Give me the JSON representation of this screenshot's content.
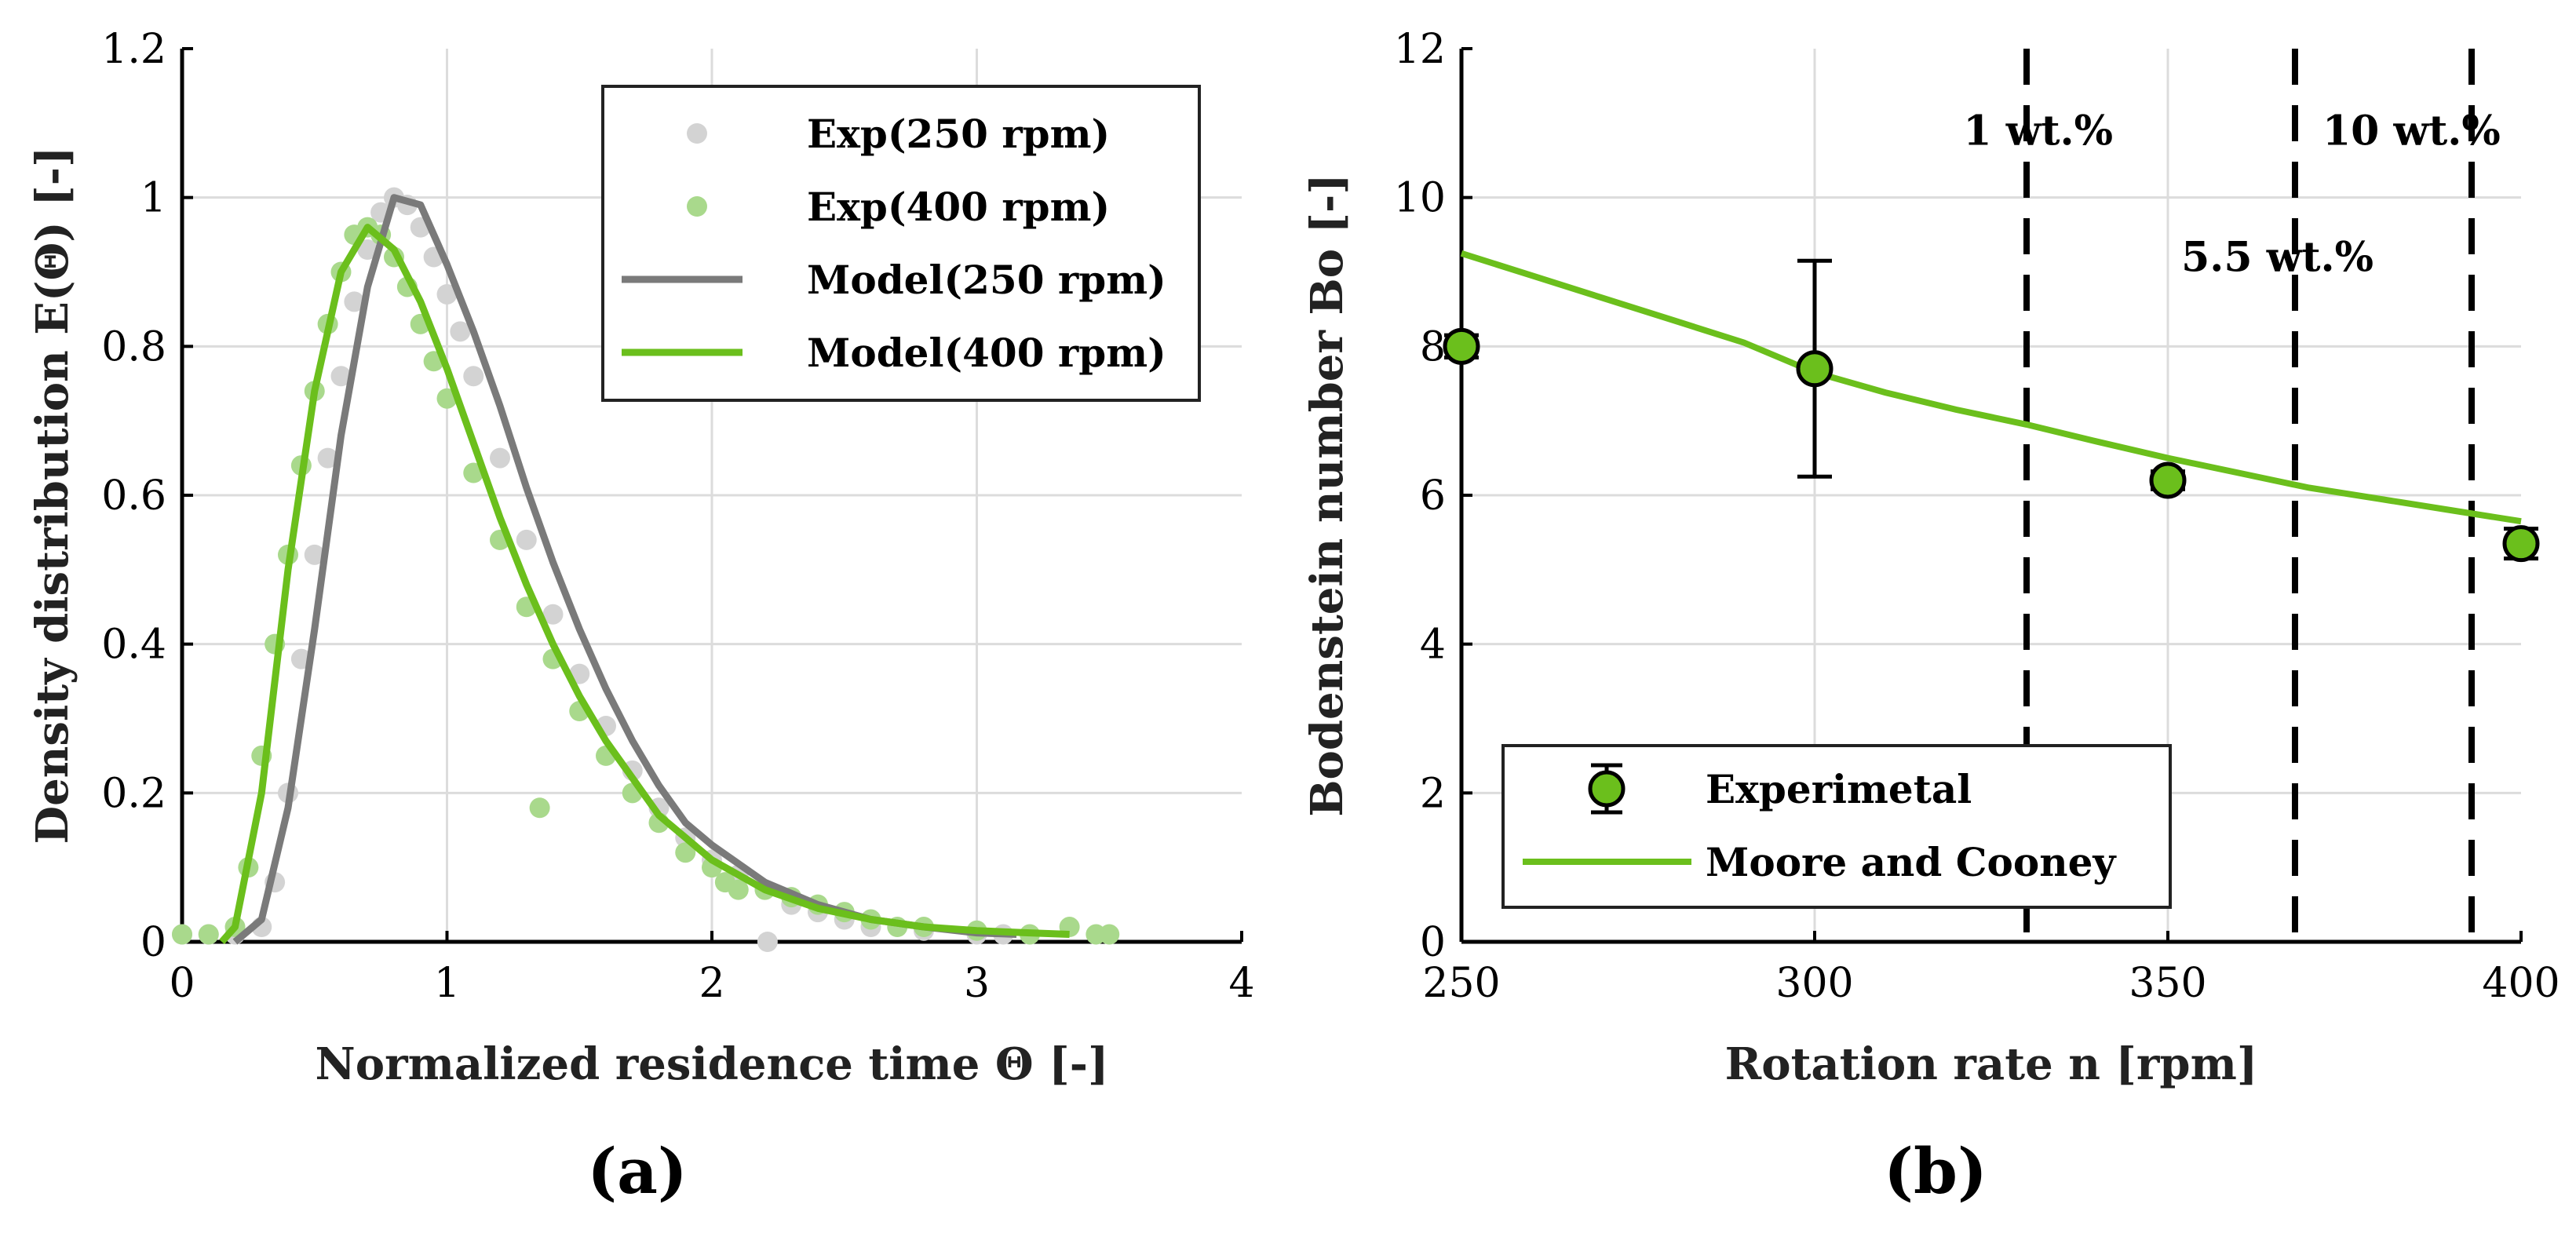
{
  "colors": {
    "green": "#6bbf1c",
    "light_green": "#a9d98c",
    "gray_model": "#7a7a7a",
    "gray_exp": "#d3d3d3",
    "grid": "#dcdcdc",
    "axis": "#000000"
  },
  "chart_data": [
    {
      "id": "a",
      "type": "scatter",
      "caption": "(a)",
      "xlabel": "Normalized residence time Θ [-]",
      "ylabel": "Density distribution E(Θ) [-]",
      "xlim": [
        0,
        4
      ],
      "ylim": [
        0,
        1.2
      ],
      "xticks": [
        0,
        1,
        2,
        3,
        4
      ],
      "xtick_labels": [
        "0",
        "1",
        "2",
        "3",
        "4"
      ],
      "yticks": [
        0,
        0.2,
        0.4,
        0.6,
        0.8,
        1.0,
        1.2
      ],
      "ytick_labels": [
        "0",
        "0.2",
        "0.4",
        "0.6",
        "0.8",
        "1",
        "1.2"
      ],
      "grid": true,
      "legend_position": "top-right",
      "legend": [
        "Exp(250 rpm)",
        "Exp(400 rpm)",
        "Model(250 rpm)",
        "Model(400 rpm)"
      ],
      "series": [
        {
          "name": "Exp(250 rpm)",
          "kind": "points",
          "color": "#d3d3d3",
          "points": [
            [
              0.0,
              0.01
            ],
            [
              0.1,
              0.01
            ],
            [
              0.2,
              0.01
            ],
            [
              0.3,
              0.02
            ],
            [
              0.35,
              0.08
            ],
            [
              0.4,
              0.2
            ],
            [
              0.45,
              0.38
            ],
            [
              0.5,
              0.52
            ],
            [
              0.55,
              0.65
            ],
            [
              0.6,
              0.76
            ],
            [
              0.65,
              0.86
            ],
            [
              0.7,
              0.93
            ],
            [
              0.75,
              0.98
            ],
            [
              0.8,
              1.0
            ],
            [
              0.85,
              0.99
            ],
            [
              0.9,
              0.96
            ],
            [
              0.95,
              0.92
            ],
            [
              1.0,
              0.87
            ],
            [
              1.05,
              0.82
            ],
            [
              1.1,
              0.76
            ],
            [
              1.2,
              0.65
            ],
            [
              1.3,
              0.54
            ],
            [
              1.4,
              0.44
            ],
            [
              1.5,
              0.36
            ],
            [
              1.6,
              0.29
            ],
            [
              1.7,
              0.23
            ],
            [
              1.8,
              0.18
            ],
            [
              1.9,
              0.14
            ],
            [
              2.0,
              0.11
            ],
            [
              2.1,
              0.09
            ],
            [
              2.2,
              0.07
            ],
            [
              2.21,
              0.0
            ],
            [
              2.3,
              0.05
            ],
            [
              2.4,
              0.04
            ],
            [
              2.5,
              0.03
            ],
            [
              2.6,
              0.02
            ],
            [
              2.8,
              0.015
            ],
            [
              3.0,
              0.01
            ],
            [
              3.1,
              0.01
            ]
          ]
        },
        {
          "name": "Exp(400 rpm)",
          "kind": "points",
          "color": "#a9d98c",
          "points": [
            [
              0.0,
              0.01
            ],
            [
              0.1,
              0.01
            ],
            [
              0.2,
              0.02
            ],
            [
              0.25,
              0.1
            ],
            [
              0.3,
              0.25
            ],
            [
              0.35,
              0.4
            ],
            [
              0.4,
              0.52
            ],
            [
              0.45,
              0.64
            ],
            [
              0.5,
              0.74
            ],
            [
              0.55,
              0.83
            ],
            [
              0.6,
              0.9
            ],
            [
              0.65,
              0.95
            ],
            [
              0.7,
              0.96
            ],
            [
              0.75,
              0.95
            ],
            [
              0.8,
              0.92
            ],
            [
              0.85,
              0.88
            ],
            [
              0.9,
              0.83
            ],
            [
              0.95,
              0.78
            ],
            [
              1.0,
              0.73
            ],
            [
              1.1,
              0.63
            ],
            [
              1.2,
              0.54
            ],
            [
              1.3,
              0.45
            ],
            [
              1.35,
              0.18
            ],
            [
              1.4,
              0.38
            ],
            [
              1.5,
              0.31
            ],
            [
              1.6,
              0.25
            ],
            [
              1.7,
              0.2
            ],
            [
              1.8,
              0.16
            ],
            [
              1.9,
              0.12
            ],
            [
              2.0,
              0.1
            ],
            [
              2.05,
              0.08
            ],
            [
              2.1,
              0.07
            ],
            [
              2.2,
              0.07
            ],
            [
              2.3,
              0.06
            ],
            [
              2.4,
              0.05
            ],
            [
              2.5,
              0.04
            ],
            [
              2.6,
              0.03
            ],
            [
              2.7,
              0.02
            ],
            [
              2.8,
              0.02
            ],
            [
              3.0,
              0.015
            ],
            [
              3.2,
              0.01
            ],
            [
              3.35,
              0.02
            ],
            [
              3.45,
              0.01
            ],
            [
              3.5,
              0.01
            ]
          ]
        },
        {
          "name": "Model(250 rpm)",
          "kind": "line",
          "color": "#7a7a7a",
          "points": [
            [
              0.2,
              0.0
            ],
            [
              0.3,
              0.03
            ],
            [
              0.4,
              0.18
            ],
            [
              0.5,
              0.42
            ],
            [
              0.6,
              0.68
            ],
            [
              0.7,
              0.88
            ],
            [
              0.8,
              1.0
            ],
            [
              0.9,
              0.99
            ],
            [
              1.0,
              0.91
            ],
            [
              1.1,
              0.82
            ],
            [
              1.2,
              0.72
            ],
            [
              1.3,
              0.61
            ],
            [
              1.4,
              0.51
            ],
            [
              1.5,
              0.42
            ],
            [
              1.6,
              0.34
            ],
            [
              1.7,
              0.27
            ],
            [
              1.8,
              0.21
            ],
            [
              1.9,
              0.16
            ],
            [
              2.0,
              0.13
            ],
            [
              2.2,
              0.08
            ],
            [
              2.4,
              0.05
            ],
            [
              2.6,
              0.03
            ],
            [
              2.8,
              0.02
            ],
            [
              3.0,
              0.012
            ],
            [
              3.15,
              0.01
            ]
          ]
        },
        {
          "name": "Model(400 rpm)",
          "kind": "line",
          "color": "#6bbf1c",
          "points": [
            [
              0.15,
              0.0
            ],
            [
              0.2,
              0.02
            ],
            [
              0.3,
              0.2
            ],
            [
              0.4,
              0.5
            ],
            [
              0.5,
              0.74
            ],
            [
              0.6,
              0.9
            ],
            [
              0.7,
              0.96
            ],
            [
              0.8,
              0.93
            ],
            [
              0.9,
              0.86
            ],
            [
              1.0,
              0.77
            ],
            [
              1.1,
              0.67
            ],
            [
              1.2,
              0.57
            ],
            [
              1.3,
              0.48
            ],
            [
              1.4,
              0.4
            ],
            [
              1.5,
              0.33
            ],
            [
              1.6,
              0.27
            ],
            [
              1.7,
              0.22
            ],
            [
              1.8,
              0.17
            ],
            [
              1.9,
              0.14
            ],
            [
              2.0,
              0.11
            ],
            [
              2.2,
              0.07
            ],
            [
              2.4,
              0.045
            ],
            [
              2.6,
              0.03
            ],
            [
              2.8,
              0.02
            ],
            [
              3.0,
              0.015
            ],
            [
              3.2,
              0.012
            ],
            [
              3.35,
              0.01
            ]
          ]
        }
      ]
    },
    {
      "id": "b",
      "type": "line",
      "caption": "(b)",
      "xlabel": "Rotation rate n [rpm]",
      "ylabel": "Bodenstein number Bo [-]",
      "xlim": [
        250,
        400
      ],
      "ylim": [
        0,
        12
      ],
      "xticks": [
        250,
        300,
        350,
        400
      ],
      "xtick_labels": [
        "250",
        "300",
        "350",
        "400"
      ],
      "yticks": [
        0,
        2,
        4,
        6,
        8,
        10,
        12
      ],
      "ytick_labels": [
        "0",
        "2",
        "4",
        "6",
        "8",
        "10",
        "12"
      ],
      "grid": true,
      "legend_position": "bottom-left",
      "legend": [
        "Experimetal",
        "Moore and Cooney"
      ],
      "series": [
        {
          "name": "Experimetal",
          "kind": "errorbar",
          "color": "#6bbf1c",
          "x": [
            250,
            300,
            350,
            400
          ],
          "y": [
            8.0,
            7.7,
            6.2,
            5.35
          ],
          "err": [
            0.15,
            1.45,
            0.12,
            0.2
          ]
        },
        {
          "name": "Moore and Cooney",
          "kind": "line",
          "color": "#6bbf1c",
          "x": [
            250,
            260,
            270,
            280,
            290,
            300,
            310,
            320,
            330,
            340,
            350,
            360,
            370,
            380,
            390,
            400
          ],
          "y": [
            9.25,
            8.95,
            8.65,
            8.35,
            8.05,
            7.65,
            7.38,
            7.15,
            6.95,
            6.72,
            6.5,
            6.3,
            6.1,
            5.95,
            5.8,
            5.65
          ]
        }
      ],
      "vlines": [
        {
          "x": 330,
          "label": "1 wt.%",
          "label_y": 10.9
        },
        {
          "x": 368,
          "label": "5.5 wt.%",
          "label_y": 9.2
        },
        {
          "x": 393,
          "label": "10 wt.%",
          "label_y": 10.9
        }
      ]
    }
  ]
}
